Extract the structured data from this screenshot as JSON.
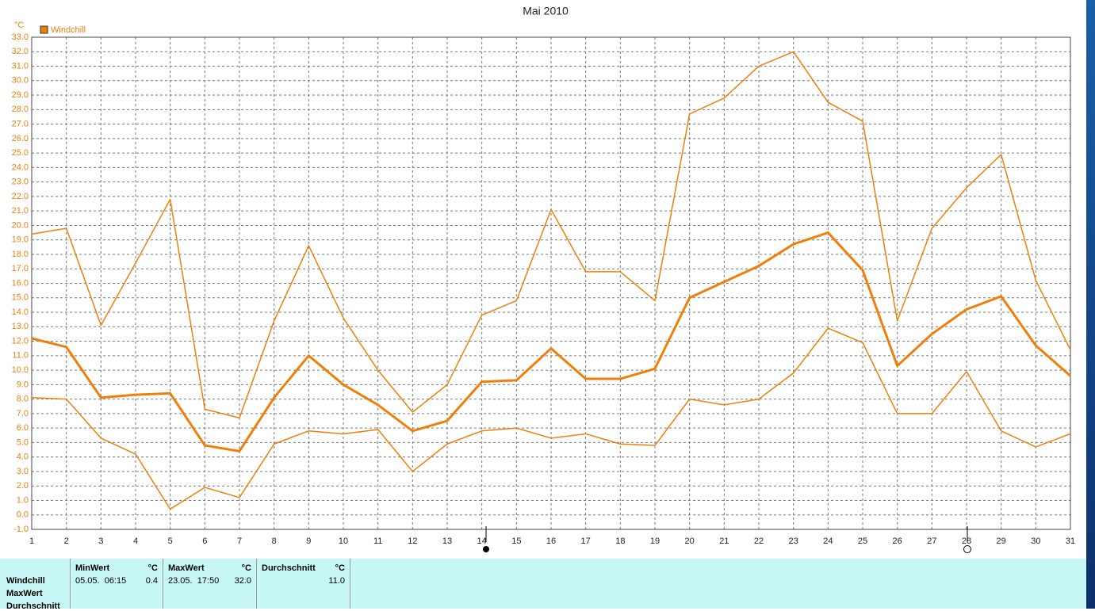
{
  "chart_data": {
    "type": "line",
    "title": "Mai 2010",
    "y_unit": "°C",
    "legend": "Windchill",
    "grid": true,
    "x": [
      1,
      2,
      3,
      4,
      5,
      6,
      7,
      8,
      9,
      10,
      11,
      12,
      13,
      14,
      15,
      16,
      17,
      18,
      19,
      20,
      21,
      22,
      23,
      24,
      25,
      26,
      27,
      28,
      29,
      30,
      31
    ],
    "xlim": [
      1,
      31
    ],
    "xticks": [
      1,
      2,
      3,
      4,
      5,
      6,
      7,
      8,
      9,
      10,
      11,
      12,
      13,
      14,
      15,
      16,
      17,
      18,
      19,
      20,
      21,
      22,
      23,
      24,
      25,
      26,
      27,
      28,
      29,
      30,
      31
    ],
    "ylim": [
      -1,
      33
    ],
    "yticks": [
      {
        "value": -1,
        "label": "-1.0"
      },
      {
        "value": 0,
        "label": "0.0"
      },
      {
        "value": 1,
        "label": "1.0"
      },
      {
        "value": 2,
        "label": "2.0"
      },
      {
        "value": 3,
        "label": "3.0"
      },
      {
        "value": 4,
        "label": "4.0"
      },
      {
        "value": 5,
        "label": "5.0"
      },
      {
        "value": 6,
        "label": "6.0"
      },
      {
        "value": 7,
        "label": "7.0"
      },
      {
        "value": 8,
        "label": "8.0"
      },
      {
        "value": 9,
        "label": "9.0"
      },
      {
        "value": 10,
        "label": "10.0"
      },
      {
        "value": 11,
        "label": "11.0"
      },
      {
        "value": 12,
        "label": "12.0"
      },
      {
        "value": 13,
        "label": "13.0"
      },
      {
        "value": 14,
        "label": "14.0"
      },
      {
        "value": 15,
        "label": "15.0"
      },
      {
        "value": 16,
        "label": "16.0"
      },
      {
        "value": 17,
        "label": "17.0"
      },
      {
        "value": 18,
        "label": "18.0"
      },
      {
        "value": 19,
        "label": "19.0"
      },
      {
        "value": 20,
        "label": "20.0"
      },
      {
        "value": 21,
        "label": "21.0"
      },
      {
        "value": 22,
        "label": "22.0"
      },
      {
        "value": 23,
        "label": "23.0"
      },
      {
        "value": 24,
        "label": "24.0"
      },
      {
        "value": 25,
        "label": "25.0"
      },
      {
        "value": 26,
        "label": "26.0"
      },
      {
        "value": 27,
        "label": "27.0"
      },
      {
        "value": 28,
        "label": "28.0"
      },
      {
        "value": 29,
        "label": "29.0"
      },
      {
        "value": 30,
        "label": "30.0"
      },
      {
        "value": 31,
        "label": "31.0"
      },
      {
        "value": 32,
        "label": "32.0"
      },
      {
        "value": 33,
        "label": "33.0"
      }
    ],
    "series": [
      {
        "color": "#f07f0a",
        "width": 1.5,
        "values": [
          19.4,
          19.8,
          13.1,
          17.4,
          21.8,
          7.3,
          6.7,
          13.4,
          18.6,
          13.6,
          10.0,
          7.1,
          9.0,
          13.8,
          14.8,
          21.1,
          16.8,
          16.8,
          14.8,
          27.7,
          28.8,
          31.0,
          32.0,
          28.5,
          27.2,
          13.4,
          19.8,
          22.6,
          24.9,
          16.2,
          11.4
        ]
      },
      {
        "color": "#f07f0a",
        "width": 3,
        "values": [
          12.2,
          11.6,
          8.1,
          8.3,
          8.4,
          4.8,
          4.4,
          8.1,
          11.0,
          9.0,
          7.6,
          5.8,
          6.5,
          9.2,
          9.3,
          11.5,
          9.4,
          9.4,
          10.1,
          15.0,
          16.1,
          17.2,
          18.7,
          19.5,
          16.9,
          10.3,
          12.5,
          14.2,
          15.1,
          11.7,
          9.6
        ]
      },
      {
        "color": "#f07f0a",
        "width": 1.5,
        "values": [
          8.1,
          8.0,
          5.3,
          4.2,
          0.4,
          1.9,
          1.2,
          4.9,
          5.8,
          5.6,
          5.9,
          3.0,
          4.9,
          5.8,
          6.0,
          5.3,
          5.6,
          4.9,
          4.8,
          8.0,
          7.6,
          8.0,
          9.8,
          12.9,
          11.9,
          7.0,
          7.0,
          9.9,
          5.8,
          4.7,
          5.6
        ]
      }
    ]
  },
  "stats": {
    "row_labels": [
      "Windchill",
      "MaxWert",
      "Durchschnitt"
    ],
    "columns": [
      {
        "header": "MinWert",
        "unit": "°C",
        "time": "05.05.  06:15",
        "value": "0.4"
      },
      {
        "header": "MaxWert",
        "unit": "°C",
        "time": "23.05.  17:50",
        "value": "32.0"
      },
      {
        "header": "Durchschnitt",
        "unit": "°C",
        "value": "11.0"
      }
    ]
  }
}
